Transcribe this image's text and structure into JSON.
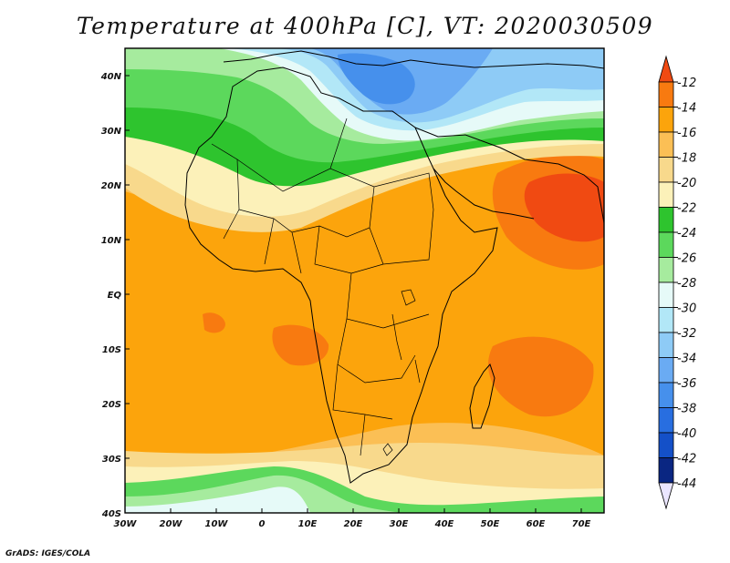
{
  "title": "Temperature at 400hPa [C], VT: 2020030509",
  "credit": "GrADS: IGES/COLA",
  "map": {
    "type": "filled-contour-map",
    "lon_range": [
      -30,
      75
    ],
    "lat_range": [
      -40,
      45
    ],
    "x_ticks": [
      {
        "value": -30,
        "label": "30W"
      },
      {
        "value": -20,
        "label": "20W"
      },
      {
        "value": -10,
        "label": "10W"
      },
      {
        "value": 0,
        "label": "0"
      },
      {
        "value": 10,
        "label": "10E"
      },
      {
        "value": 20,
        "label": "20E"
      },
      {
        "value": 30,
        "label": "30E"
      },
      {
        "value": 40,
        "label": "40E"
      },
      {
        "value": 50,
        "label": "50E"
      },
      {
        "value": 60,
        "label": "60E"
      },
      {
        "value": 70,
        "label": "70E"
      }
    ],
    "y_ticks": [
      {
        "value": 40,
        "label": "40N"
      },
      {
        "value": 30,
        "label": "30N"
      },
      {
        "value": 20,
        "label": "20N"
      },
      {
        "value": 10,
        "label": "10N"
      },
      {
        "value": 0,
        "label": "EQ"
      },
      {
        "value": -10,
        "label": "10S"
      },
      {
        "value": -20,
        "label": "20S"
      },
      {
        "value": -30,
        "label": "30S"
      },
      {
        "value": -40,
        "label": "40S"
      }
    ]
  },
  "colorbar": {
    "levels": [
      "-12",
      "-14",
      "-16",
      "-18",
      "-20",
      "-22",
      "-24",
      "-26",
      "-28",
      "-30",
      "-32",
      "-34",
      "-36",
      "-38",
      "-40",
      "-42",
      "-44"
    ],
    "colors": [
      "#f04a12",
      "#f87a10",
      "#fca40c",
      "#fbbf55",
      "#f8d98c",
      "#fcf1b9",
      "#2ec42e",
      "#5cd85c",
      "#a6eb9e",
      "#e6faf8",
      "#b2e7f7",
      "#8ecbf6",
      "#6aabf3",
      "#4690ec",
      "#286ee0",
      "#1450c8",
      "#0a2682",
      "#ebe6ff"
    ]
  }
}
